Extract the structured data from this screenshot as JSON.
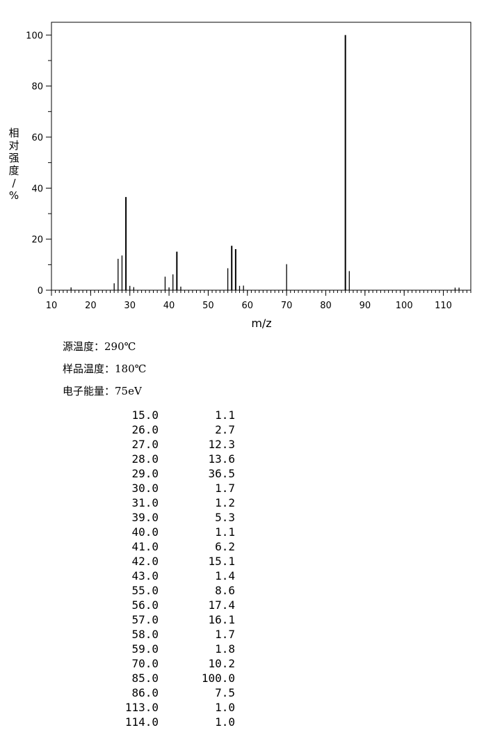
{
  "chart_data": {
    "type": "bar",
    "xlabel": "m/z",
    "ylabel": "相对强度/%",
    "ylabel_chars": [
      "相",
      "对",
      "强",
      "度",
      "/",
      "%"
    ],
    "xlim": [
      10,
      117
    ],
    "ylim": [
      0,
      105
    ],
    "xticks": [
      10,
      20,
      30,
      40,
      50,
      60,
      70,
      80,
      90,
      100,
      110
    ],
    "yticks": [
      0,
      20,
      40,
      60,
      80,
      100
    ],
    "mz": [
      15,
      26,
      27,
      28,
      29,
      30,
      31,
      39,
      40,
      41,
      42,
      43,
      55,
      56,
      57,
      58,
      59,
      70,
      85,
      86,
      113,
      114
    ],
    "values": [
      1.1,
      2.7,
      12.3,
      13.6,
      36.5,
      1.7,
      1.2,
      5.3,
      1.1,
      6.2,
      15.1,
      1.4,
      8.6,
      17.4,
      16.1,
      1.7,
      1.8,
      10.2,
      100.0,
      7.5,
      1.0,
      1.0
    ]
  },
  "info": {
    "source_temp_label": "源温度：",
    "source_temp": "290℃",
    "sample_temp_label": "样品温度：",
    "sample_temp": "180℃",
    "electron_energy_label": "电子能量：",
    "electron_energy": "75eV"
  },
  "peak_table": [
    [
      "15.0",
      "1.1"
    ],
    [
      "26.0",
      "2.7"
    ],
    [
      "27.0",
      "12.3"
    ],
    [
      "28.0",
      "13.6"
    ],
    [
      "29.0",
      "36.5"
    ],
    [
      "30.0",
      "1.7"
    ],
    [
      "31.0",
      "1.2"
    ],
    [
      "39.0",
      "5.3"
    ],
    [
      "40.0",
      "1.1"
    ],
    [
      "41.0",
      "6.2"
    ],
    [
      "42.0",
      "15.1"
    ],
    [
      "43.0",
      "1.4"
    ],
    [
      "55.0",
      "8.6"
    ],
    [
      "56.0",
      "17.4"
    ],
    [
      "57.0",
      "16.1"
    ],
    [
      "58.0",
      "1.7"
    ],
    [
      "59.0",
      "1.8"
    ],
    [
      "70.0",
      "10.2"
    ],
    [
      "85.0",
      "100.0"
    ],
    [
      "86.0",
      "7.5"
    ],
    [
      "113.0",
      "1.0"
    ],
    [
      "114.0",
      "1.0"
    ]
  ]
}
